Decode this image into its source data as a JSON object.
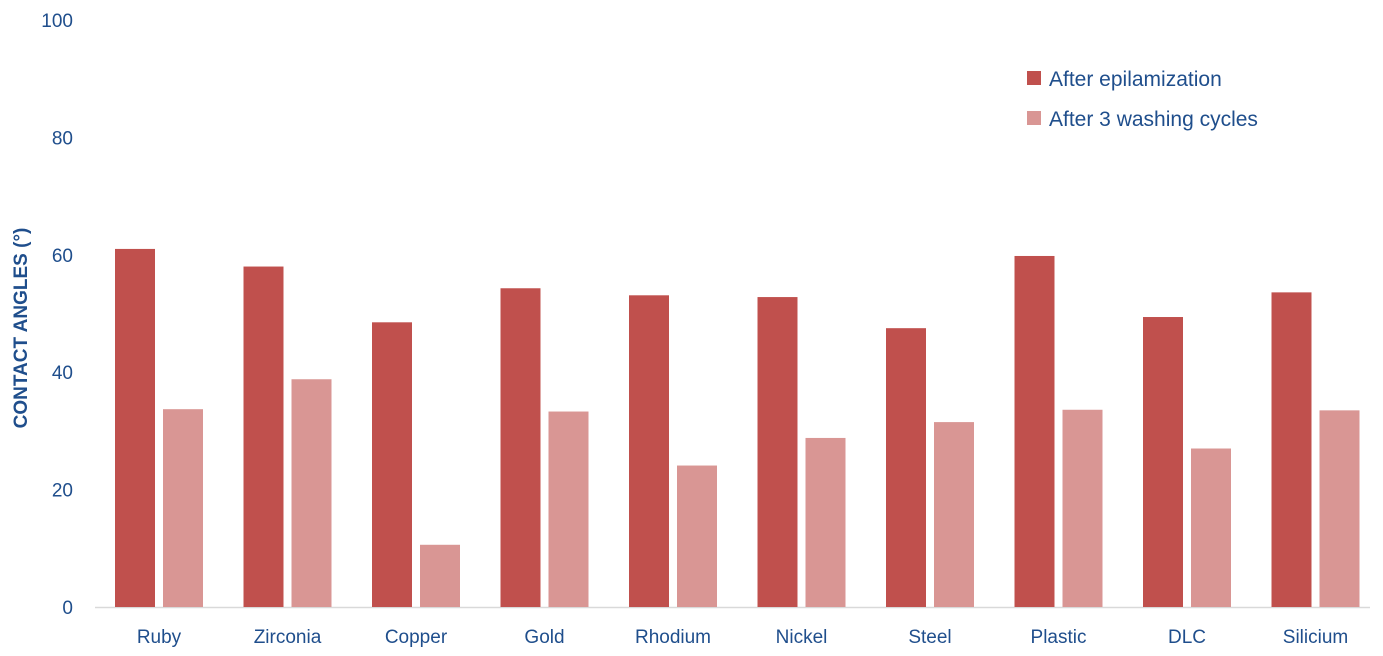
{
  "chart_data": {
    "type": "bar",
    "title": "",
    "xlabel": "",
    "ylabel": "CONTACT ANGLES (°)",
    "ylim": [
      0,
      100
    ],
    "yticks": [
      0,
      20,
      40,
      60,
      80,
      100
    ],
    "grid": false,
    "legend_position": "top-right",
    "categories": [
      "Ruby",
      "Zirconia",
      "Copper",
      "Gold",
      "Rhodium",
      "Nickel",
      "Steel",
      "Plastic",
      "DLC",
      "Silicium"
    ],
    "series": [
      {
        "name": "After epilamization",
        "color": "#c0504d",
        "values": [
          61,
          58,
          48.5,
          54.3,
          53.1,
          52.8,
          47.5,
          59.8,
          49.4,
          53.6
        ]
      },
      {
        "name": "After 3 washing cycles",
        "color": "#d99694",
        "values": [
          33.7,
          38.8,
          10.6,
          33.3,
          24.1,
          28.8,
          31.5,
          33.6,
          27.0,
          33.5
        ]
      }
    ],
    "text_color": "#1f4e8c",
    "axis_color": "#d9d9d9"
  }
}
